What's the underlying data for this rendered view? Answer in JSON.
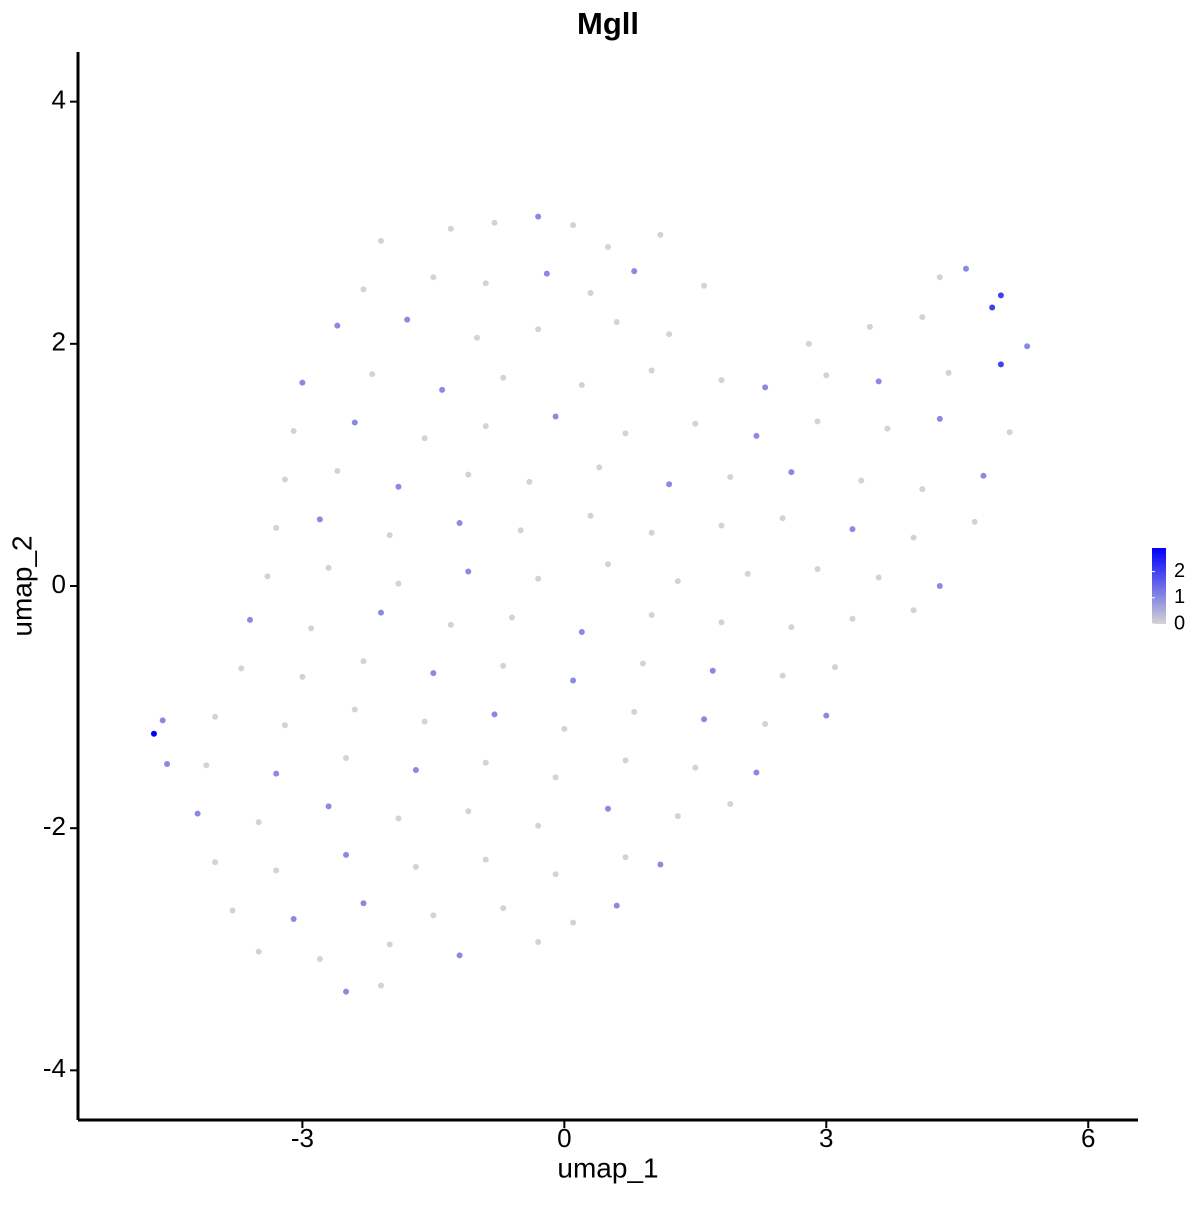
{
  "chart_data": {
    "type": "scatter",
    "title": "Mgll",
    "x_label": "umap_1",
    "y_label": "umap_2",
    "xlim": [
      -5.57,
      6.57
    ],
    "ylim": [
      -4.41,
      4.41
    ],
    "xticks": [
      -3,
      0,
      3,
      6
    ],
    "yticks": [
      -4,
      -2,
      0,
      2,
      4
    ],
    "color_low": "#d3d3d3",
    "color_high": "#0000ff",
    "color_lim": [
      0,
      2.9
    ],
    "color_ticks": [
      0,
      1,
      2
    ],
    "x": [
      -2.1,
      -1.3,
      -0.8,
      -0.3,
      0.1,
      0.5,
      1.1,
      -2.3,
      -1.5,
      -0.9,
      -0.2,
      0.3,
      0.8,
      1.6,
      4.3,
      4.6,
      5.0,
      -2.6,
      -1.8,
      -1.0,
      -0.3,
      0.6,
      1.2,
      2.8,
      3.5,
      4.1,
      4.9,
      5.3,
      -3.0,
      -2.2,
      -1.4,
      -0.7,
      0.2,
      1.0,
      1.8,
      2.3,
      3.0,
      3.6,
      4.4,
      5.0,
      -3.1,
      -2.4,
      -1.6,
      -0.9,
      -0.1,
      0.7,
      1.5,
      2.2,
      2.9,
      3.7,
      4.3,
      5.1,
      -3.2,
      -2.6,
      -1.9,
      -1.1,
      -0.4,
      0.4,
      1.2,
      1.9,
      2.6,
      3.4,
      4.1,
      4.8,
      -3.3,
      -2.8,
      -2.0,
      -1.2,
      -0.5,
      0.3,
      1.0,
      1.8,
      2.5,
      3.3,
      4.0,
      4.7,
      -3.4,
      -2.7,
      -1.9,
      -1.1,
      -0.3,
      0.5,
      1.3,
      2.1,
      2.9,
      3.6,
      4.3,
      -3.6,
      -2.9,
      -2.1,
      -1.3,
      -0.6,
      0.2,
      1.0,
      1.8,
      2.6,
      3.3,
      4.0,
      -3.7,
      -3.0,
      -2.3,
      -1.5,
      -0.7,
      0.1,
      0.9,
      1.7,
      2.5,
      3.1,
      -4.0,
      -3.2,
      -2.4,
      -1.6,
      -0.8,
      0.0,
      0.8,
      1.6,
      2.3,
      3.0,
      -4.1,
      -3.3,
      -2.5,
      -1.7,
      -0.9,
      -0.1,
      0.7,
      1.5,
      2.2,
      -4.2,
      -3.5,
      -2.7,
      -1.9,
      -1.1,
      -0.3,
      0.5,
      1.3,
      1.9,
      -4.0,
      -3.3,
      -2.5,
      -1.7,
      -0.9,
      -0.1,
      0.7,
      1.1,
      -3.8,
      -3.1,
      -2.3,
      -1.5,
      -0.7,
      0.1,
      0.6,
      -3.5,
      -2.8,
      -2.0,
      -1.2,
      -0.3,
      -2.5,
      -2.1,
      -4.7,
      -4.6,
      -4.55
    ],
    "y": [
      2.85,
      2.95,
      3.0,
      3.05,
      2.98,
      2.8,
      2.9,
      2.45,
      2.55,
      2.5,
      2.58,
      2.42,
      2.6,
      2.48,
      2.55,
      2.62,
      2.4,
      2.15,
      2.2,
      2.05,
      2.12,
      2.18,
      2.08,
      2.0,
      2.14,
      2.22,
      2.3,
      1.98,
      1.68,
      1.75,
      1.62,
      1.72,
      1.66,
      1.78,
      1.7,
      1.64,
      1.74,
      1.69,
      1.76,
      1.83,
      1.28,
      1.35,
      1.22,
      1.32,
      1.4,
      1.26,
      1.34,
      1.24,
      1.36,
      1.3,
      1.38,
      1.27,
      0.88,
      0.95,
      0.82,
      0.92,
      0.86,
      0.98,
      0.84,
      0.9,
      0.94,
      0.87,
      0.8,
      0.91,
      0.48,
      0.55,
      0.42,
      0.52,
      0.46,
      0.58,
      0.44,
      0.5,
      0.56,
      0.47,
      0.4,
      0.53,
      0.08,
      0.15,
      0.02,
      0.12,
      0.06,
      0.18,
      0.04,
      0.1,
      0.14,
      0.07,
      0.0,
      -0.28,
      -0.35,
      -0.22,
      -0.32,
      -0.26,
      -0.38,
      -0.24,
      -0.3,
      -0.34,
      -0.27,
      -0.2,
      -0.68,
      -0.75,
      -0.62,
      -0.72,
      -0.66,
      -0.78,
      -0.64,
      -0.7,
      -0.74,
      -0.67,
      -1.08,
      -1.15,
      -1.02,
      -1.12,
      -1.06,
      -1.18,
      -1.04,
      -1.1,
      -1.14,
      -1.07,
      -1.48,
      -1.55,
      -1.42,
      -1.52,
      -1.46,
      -1.58,
      -1.44,
      -1.5,
      -1.54,
      -1.88,
      -1.95,
      -1.82,
      -1.92,
      -1.86,
      -1.98,
      -1.84,
      -1.9,
      -1.8,
      -2.28,
      -2.35,
      -2.22,
      -2.32,
      -2.26,
      -2.38,
      -2.24,
      -2.3,
      -2.68,
      -2.75,
      -2.62,
      -2.72,
      -2.66,
      -2.78,
      -2.64,
      -3.02,
      -3.08,
      -2.96,
      -3.05,
      -2.94,
      -3.35,
      -3.3,
      -1.22,
      -1.11,
      -1.47
    ],
    "values": [
      0,
      0,
      0,
      1,
      0,
      0,
      0,
      0,
      0,
      0,
      1,
      0,
      1,
      0,
      0,
      1,
      2,
      1,
      1,
      0,
      0,
      0,
      0,
      0,
      0,
      0,
      2,
      1,
      1,
      0,
      1,
      0,
      0,
      0,
      0,
      1,
      0,
      1,
      0,
      2,
      0,
      1,
      0,
      0,
      1,
      0,
      0,
      1,
      0,
      0,
      1,
      0,
      0,
      0,
      1,
      0,
      0,
      0,
      1,
      0,
      1,
      0,
      0,
      1,
      0,
      1,
      0,
      1,
      0,
      0,
      0,
      0,
      0,
      1,
      0,
      0,
      0,
      0,
      0,
      1,
      0,
      0,
      0,
      0,
      0,
      0,
      1,
      1,
      0,
      1,
      0,
      0,
      1,
      0,
      0,
      0,
      0,
      0,
      0,
      0,
      0,
      1,
      0,
      1,
      0,
      1,
      0,
      0,
      0,
      0,
      0,
      0,
      1,
      0,
      0,
      1,
      0,
      1,
      0,
      1,
      0,
      1,
      0,
      0,
      0,
      0,
      1,
      1,
      0,
      1,
      0,
      0,
      0,
      1,
      0,
      0,
      0,
      0,
      1,
      0,
      0,
      0,
      0,
      1,
      0,
      1,
      1,
      0,
      0,
      0,
      1,
      0,
      0,
      0,
      1,
      0,
      1,
      0,
      2.9,
      1,
      1
    ]
  }
}
